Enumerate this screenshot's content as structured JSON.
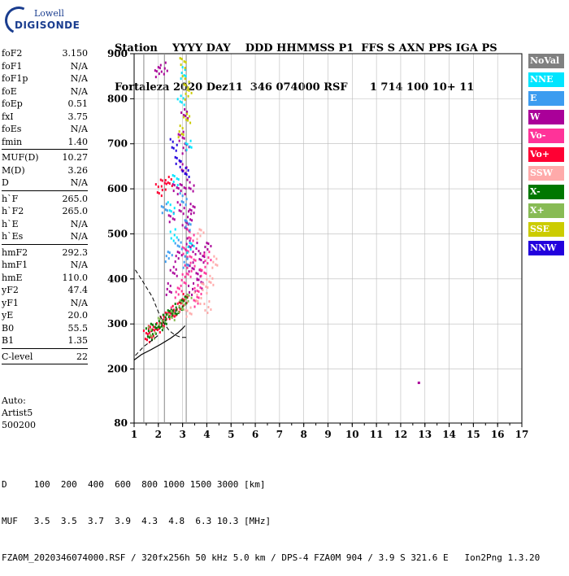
{
  "logo": {
    "line1": "Lowell",
    "line2": "DIGISONDE"
  },
  "header": {
    "line1": "Station    YYYY DAY    DDD HHMMSS P1  FFS S AXN PPS IGA PS",
    "line2": "Fortaleza 2020 Dez11  346 074000 RSF      1 714 100 10+ 11"
  },
  "params": {
    "group1": [
      {
        "k": "foF2",
        "v": "3.150"
      },
      {
        "k": "foF1",
        "v": "N/A"
      },
      {
        "k": "foF1p",
        "v": "N/A"
      },
      {
        "k": "foE",
        "v": "N/A"
      },
      {
        "k": "foEp",
        "v": "0.51"
      },
      {
        "k": "fxI",
        "v": "3.75"
      },
      {
        "k": "foEs",
        "v": "N/A"
      },
      {
        "k": "fmin",
        "v": "1.40"
      }
    ],
    "group2": [
      {
        "k": "MUF(D)",
        "v": "10.27"
      },
      {
        "k": "M(D)",
        "v": "3.26"
      },
      {
        "k": "D",
        "v": "N/A"
      }
    ],
    "group3": [
      {
        "k": "h`F",
        "v": "265.0"
      },
      {
        "k": "h`F2",
        "v": "265.0"
      },
      {
        "k": "h`E",
        "v": "N/A"
      },
      {
        "k": "h`Es",
        "v": "N/A"
      }
    ],
    "group4": [
      {
        "k": "hmF2",
        "v": "292.3"
      },
      {
        "k": "hmF1",
        "v": "N/A"
      },
      {
        "k": "hmE",
        "v": "110.0"
      },
      {
        "k": "yF2",
        "v": "47.4"
      },
      {
        "k": "yF1",
        "v": "N/A"
      },
      {
        "k": "yE",
        "v": "20.0"
      },
      {
        "k": "B0",
        "v": "55.5"
      },
      {
        "k": "B1",
        "v": "1.35"
      }
    ],
    "group5": [
      {
        "k": "C-level",
        "v": "22"
      }
    ]
  },
  "auto": {
    "line1": "Auto:",
    "line2": "Artist5",
    "line3": "500200"
  },
  "legend": [
    {
      "label": "NoVal",
      "color": "#808080"
    },
    {
      "label": "NNE",
      "color": "#00e5ff"
    },
    {
      "label": "E",
      "color": "#3c9cf0"
    },
    {
      "label": "W",
      "color": "#aa0099"
    },
    {
      "label": "Vo-",
      "color": "#ff3399"
    },
    {
      "label": "Vo+",
      "color": "#ff0033"
    },
    {
      "label": "SSW",
      "color": "#ffaaaa"
    },
    {
      "label": "X-",
      "color": "#007700"
    },
    {
      "label": "X+",
      "color": "#88bb55"
    },
    {
      "label": "SSE",
      "color": "#cccc00"
    },
    {
      "label": "NNW",
      "color": "#2200dd"
    }
  ],
  "footer": {
    "line1": "D     100  200  400  600  800 1000 1500 3000 [km]",
    "line2": "MUF   3.5  3.5  3.7  3.9  4.3  4.8  6.3 10.3 [MHz]",
    "line3": "FZA0M_2020346074000.RSF / 320fx256h 50 kHz 5.0 km / DPS-4 FZA0M 904 / 3.9 S 321.6 E   Ion2Png 1.3.20"
  },
  "chart_data": {
    "type": "scatter",
    "title": "",
    "xlabel": "",
    "ylabel": "",
    "xlim": [
      1,
      17
    ],
    "ylim": [
      80,
      900
    ],
    "x_ticks": [
      1,
      2,
      3,
      4,
      5,
      6,
      7,
      8,
      9,
      10,
      11,
      12,
      13,
      14,
      15,
      16,
      17
    ],
    "y_ticks": [
      80,
      200,
      300,
      400,
      500,
      600,
      700,
      800,
      900
    ],
    "grid": true,
    "vertical_markers": [
      1.4,
      2.25,
      3.15
    ],
    "series": [
      {
        "name": "W",
        "color": "#aa0099",
        "points": [
          [
            2.9,
            560
          ],
          [
            3.0,
            600
          ],
          [
            3.1,
            520
          ],
          [
            3.2,
            480
          ],
          [
            2.8,
            450
          ],
          [
            3.3,
            430
          ],
          [
            3.5,
            470
          ],
          [
            3.6,
            410
          ],
          [
            3.4,
            560
          ],
          [
            3.0,
            650
          ],
          [
            3.7,
            390
          ],
          [
            2.6,
            420
          ],
          [
            2.4,
            380
          ],
          [
            3.1,
            690
          ],
          [
            2.9,
            720
          ],
          [
            2.2,
            870
          ],
          [
            1.9,
            860
          ],
          [
            3.8,
            450
          ],
          [
            3.3,
            610
          ],
          [
            2.7,
            600
          ],
          [
            3.05,
            770
          ],
          [
            3.25,
            540
          ],
          [
            4.0,
            470
          ],
          [
            2.5,
            540
          ],
          [
            3.35,
            380
          ]
        ]
      },
      {
        "name": "Vo-",
        "color": "#ff3399",
        "points": [
          [
            3.2,
            420
          ],
          [
            3.4,
            440
          ],
          [
            3.6,
            380
          ],
          [
            3.0,
            400
          ],
          [
            2.8,
            370
          ],
          [
            3.8,
            420
          ],
          [
            4.0,
            450
          ],
          [
            3.5,
            350
          ],
          [
            2.6,
            330
          ],
          [
            3.3,
            500
          ],
          [
            3.1,
            460
          ]
        ]
      },
      {
        "name": "Vo+",
        "color": "#ff0033",
        "points": [
          [
            1.5,
            275
          ],
          [
            1.7,
            285
          ],
          [
            1.9,
            295
          ],
          [
            2.1,
            305
          ],
          [
            2.3,
            315
          ],
          [
            2.5,
            325
          ],
          [
            2.7,
            335
          ],
          [
            2.9,
            345
          ],
          [
            3.1,
            360
          ],
          [
            2.0,
            600
          ],
          [
            2.2,
            610
          ],
          [
            2.4,
            620
          ],
          [
            1.6,
            280
          ]
        ]
      },
      {
        "name": "SSW",
        "color": "#ffaaaa",
        "points": [
          [
            3.6,
            360
          ],
          [
            3.9,
            380
          ],
          [
            4.1,
            400
          ],
          [
            4.3,
            440
          ],
          [
            3.7,
            500
          ],
          [
            3.2,
            330
          ],
          [
            4.0,
            340
          ]
        ]
      },
      {
        "name": "X-",
        "color": "#007700",
        "points": [
          [
            1.6,
            280
          ],
          [
            1.8,
            290
          ],
          [
            2.0,
            300
          ],
          [
            2.2,
            310
          ],
          [
            2.4,
            320
          ],
          [
            2.6,
            330
          ],
          [
            2.8,
            340
          ],
          [
            3.0,
            350
          ]
        ]
      },
      {
        "name": "X+",
        "color": "#88bb55",
        "points": [
          [
            1.7,
            283
          ],
          [
            2.1,
            303
          ],
          [
            2.5,
            322
          ],
          [
            2.9,
            342
          ],
          [
            3.2,
            355
          ]
        ]
      },
      {
        "name": "NNE",
        "color": "#00e5ff",
        "points": [
          [
            2.5,
            560
          ],
          [
            2.7,
            620
          ],
          [
            2.9,
            800
          ],
          [
            3.0,
            860
          ],
          [
            3.3,
            470
          ],
          [
            3.2,
            700
          ],
          [
            2.6,
            500
          ]
        ]
      },
      {
        "name": "E",
        "color": "#3c9cf0",
        "points": [
          [
            3.0,
            580
          ],
          [
            3.2,
            520
          ],
          [
            2.8,
            480
          ],
          [
            3.1,
            440
          ],
          [
            2.4,
            450
          ],
          [
            2.2,
            560
          ]
        ]
      },
      {
        "name": "SSE",
        "color": "#cccc00",
        "points": [
          [
            3.1,
            840
          ],
          [
            3.0,
            880
          ],
          [
            3.15,
            760
          ],
          [
            2.9,
            730
          ],
          [
            3.2,
            810
          ]
        ]
      },
      {
        "name": "NNW",
        "color": "#2200dd",
        "points": [
          [
            2.6,
            700
          ],
          [
            2.8,
            660
          ],
          [
            3.1,
            640
          ]
        ]
      }
    ],
    "profile_curve": [
      [
        1.0,
        220
      ],
      [
        1.3,
        232
      ],
      [
        1.7,
        243
      ],
      [
        2.1,
        255
      ],
      [
        2.5,
        268
      ],
      [
        2.8,
        280
      ],
      [
        3.0,
        290
      ],
      [
        3.1,
        296
      ]
    ],
    "dashed_curves": [
      [
        [
          1.05,
          420
        ],
        [
          1.35,
          395
        ],
        [
          1.75,
          360
        ],
        [
          2.05,
          320
        ],
        [
          2.25,
          300
        ],
        [
          2.45,
          285
        ],
        [
          2.7,
          275
        ],
        [
          2.95,
          270
        ],
        [
          3.15,
          270
        ]
      ],
      [
        [
          1.05,
          230
        ],
        [
          1.4,
          250
        ],
        [
          1.7,
          262
        ],
        [
          2.0,
          275
        ]
      ]
    ],
    "outlier": [
      12.7,
      172
    ]
  }
}
